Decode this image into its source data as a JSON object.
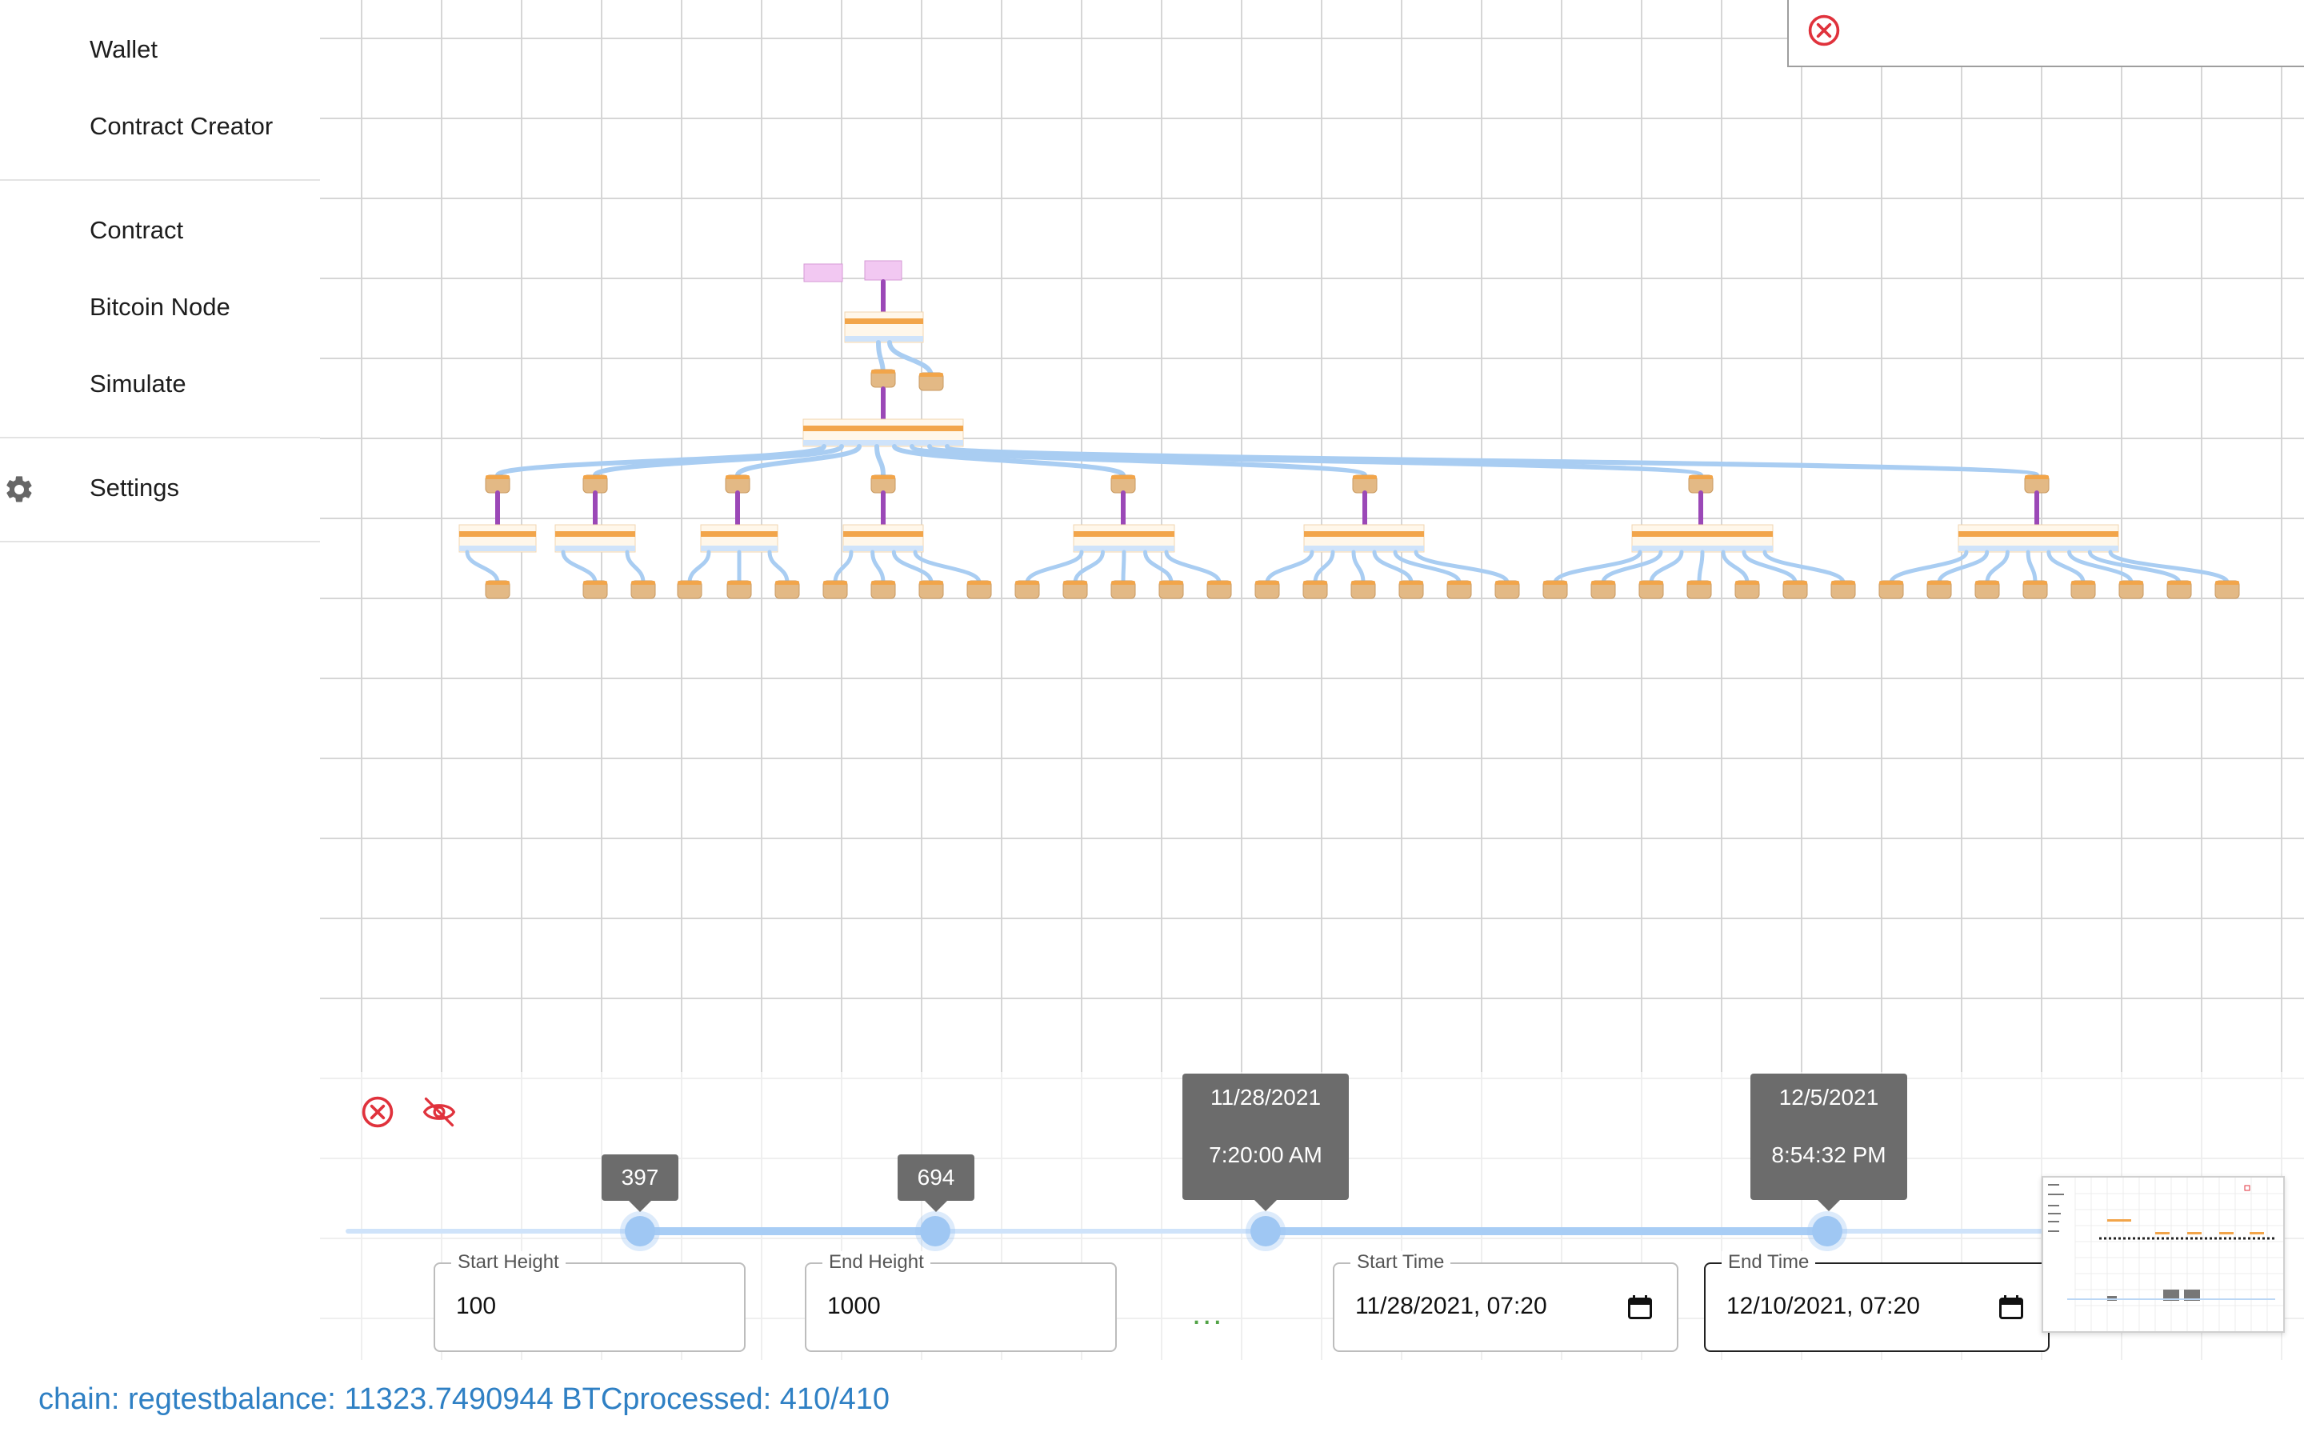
{
  "sidebar": {
    "items": [
      {
        "label": "Wallet"
      },
      {
        "label": "Contract Creator"
      },
      {
        "label": "Contract"
      },
      {
        "label": "Bitcoin Node"
      },
      {
        "label": "Simulate"
      },
      {
        "label": "Settings",
        "icon": "gear-icon"
      }
    ]
  },
  "top_panel": {
    "icon": "close-circle-icon"
  },
  "controls": {
    "close_icon": "close-circle-icon",
    "hide_icon": "eye-off-icon",
    "height_slider": {
      "start_tooltip": "397",
      "end_tooltip": "694"
    },
    "time_slider": {
      "start_date": "11/28/2021",
      "start_time": "7:20:00 AM",
      "end_date": "12/5/2021",
      "end_time": "8:54:32 PM"
    },
    "start_height": {
      "label": "Start Height",
      "value": "100"
    },
    "end_height": {
      "label": "End Height",
      "value": "1000"
    },
    "more": "...",
    "start_time": {
      "label": "Start Time",
      "value": "11/28/2021, 07:20"
    },
    "end_time": {
      "label": "End Time",
      "value": "12/10/2021, 07:20"
    }
  },
  "status": {
    "text": "chain: regtestbalance: 11323.7490944 BTCprocessed: 410/410"
  },
  "colors": {
    "accent_blue": "#9fc7f3",
    "edge_blue": "#a9cdf2",
    "spend_purple": "#9b48b7",
    "tx_orange": "#f2a54a",
    "utxo_tan": "#e3b985",
    "close_red": "#e0323c",
    "status_blue": "#2f80c4"
  }
}
